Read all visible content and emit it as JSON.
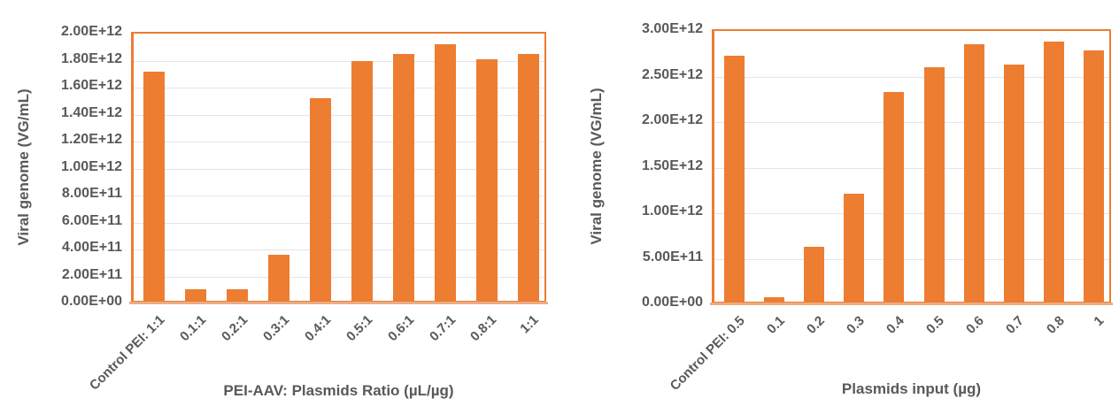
{
  "colors": {
    "bar": "#ED7D31",
    "plot_border": "#ED7D31",
    "axis_line": "#EBAD84",
    "grid": "#E5E5E5",
    "text": "#595959"
  },
  "chart_data": [
    {
      "type": "bar",
      "title": "",
      "ylabel": "Viral genome (VG/mL)",
      "xlabel": "PEI-AAV: Plasmids Ratio (µL/µg)",
      "categories": [
        "Control PEI: 1:1",
        "0.1:1",
        "0.2:1",
        "0.3:1",
        "0.4:1",
        "0.5:1",
        "0.6:1",
        "0.7:1",
        "0.8:1",
        "1:1"
      ],
      "values": [
        1700000000000.0,
        85000000000.0,
        85000000000.0,
        340000000000.0,
        1500000000000.0,
        1780000000000.0,
        1830000000000.0,
        1900000000000.0,
        1790000000000.0,
        1830000000000.0
      ],
      "ylim": [
        0,
        2000000000000.0
      ],
      "ytick_labels": [
        "0.00E+00",
        "2.00E+11",
        "4.00E+11",
        "6.00E+11",
        "8.00E+11",
        "1.00E+12",
        "1.20E+12",
        "1.40E+12",
        "1.60E+12",
        "1.80E+12",
        "2.00E+12"
      ],
      "grid": "horizontal",
      "legend": "none",
      "bar_color": "#ED7D31"
    },
    {
      "type": "bar",
      "title": "",
      "ylabel": "Viral genome (VG/mL)",
      "xlabel": "Plasmids input (µg)",
      "categories": [
        "Control PEI: 0.5",
        "0.1",
        "0.2",
        "0.3",
        "0.4",
        "0.5",
        "0.6",
        "0.7",
        "0.8",
        "1"
      ],
      "values": [
        2700000000000.0,
        50000000000.0,
        600000000000.0,
        1180000000000.0,
        2300000000000.0,
        2570000000000.0,
        2830000000000.0,
        2600000000000.0,
        2850000000000.0,
        2760000000000.0
      ],
      "ylim": [
        0,
        3000000000000.0
      ],
      "ytick_labels": [
        "0.00E+00",
        "5.00E+11",
        "1.00E+12",
        "1.50E+12",
        "2.00E+12",
        "2.50E+12",
        "3.00E+12"
      ],
      "grid": "horizontal",
      "legend": "none",
      "bar_color": "#ED7D31"
    }
  ]
}
